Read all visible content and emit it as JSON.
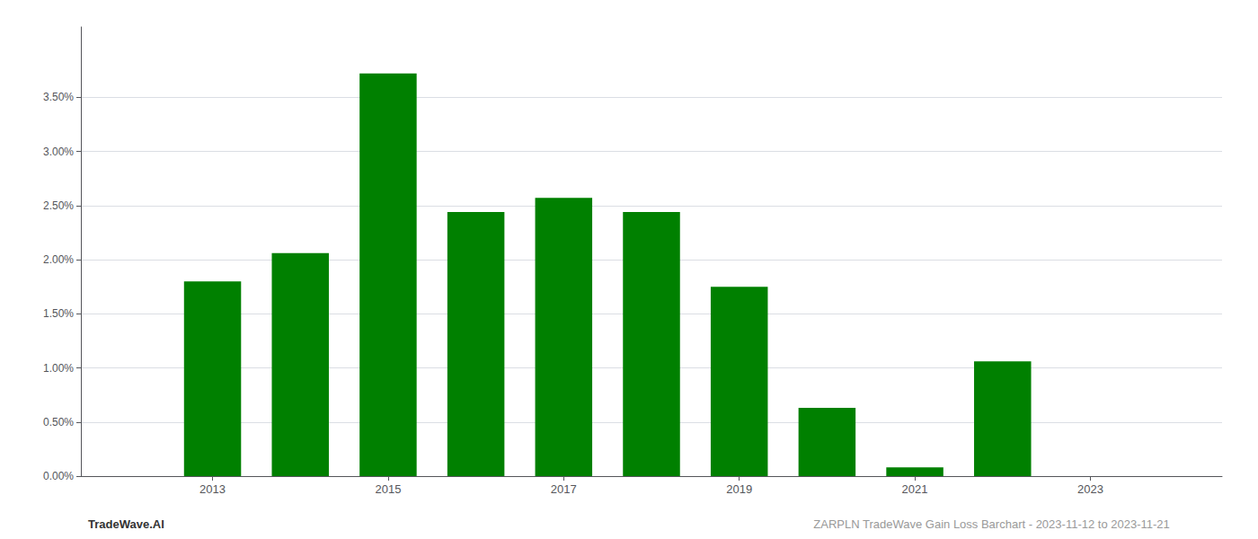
{
  "chart_data": {
    "type": "bar",
    "x": [
      2013,
      2014,
      2015,
      2016,
      2017,
      2018,
      2019,
      2020,
      2021,
      2022,
      2023
    ],
    "values": [
      0.018,
      0.0206,
      0.0372,
      0.0244,
      0.0257,
      0.0244,
      0.0175,
      0.0063,
      0.0008,
      0.0106,
      0.0
    ],
    "color": "#008000",
    "xlim": [
      2011.5,
      2024.5
    ],
    "xticks": [
      2013,
      2015,
      2017,
      2019,
      2021,
      2023
    ],
    "ylim": [
      0,
      0.0415
    ],
    "yticks": [
      {
        "value": 0.0,
        "label": "0.00%"
      },
      {
        "value": 0.005,
        "label": "0.50%"
      },
      {
        "value": 0.01,
        "label": "1.00%"
      },
      {
        "value": 0.015,
        "label": "1.50%"
      },
      {
        "value": 0.02,
        "label": "2.00%"
      },
      {
        "value": 0.025,
        "label": "2.50%"
      },
      {
        "value": 0.03,
        "label": "3.00%"
      },
      {
        "value": 0.035,
        "label": "3.50%"
      }
    ],
    "grid": true,
    "annotations": [
      "TradeWave.AI",
      "ZARPLN TradeWave Gain Loss Barchart - 2023-11-12 to 2023-11-21"
    ]
  }
}
